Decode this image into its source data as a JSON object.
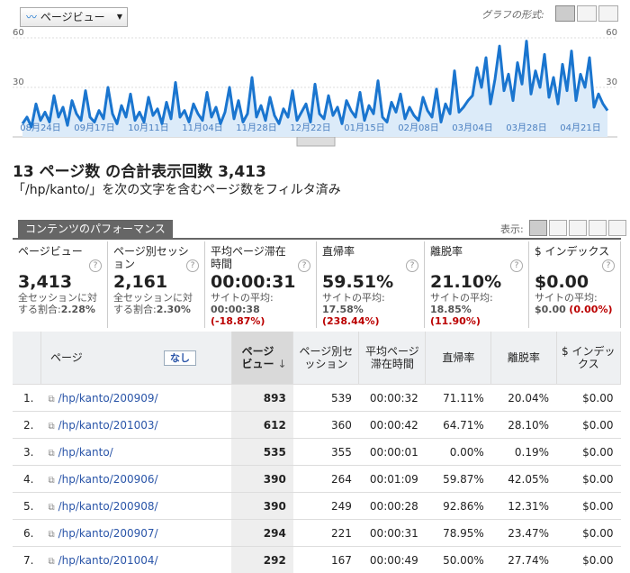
{
  "toolbar": {
    "metric": "ページビュー",
    "graph_label": "グラフの形式:"
  },
  "chart_data": {
    "type": "area",
    "color": "#1a75cf",
    "fill": "#dcebf9",
    "ylim": [
      0,
      60
    ],
    "yticks": [
      30,
      60
    ],
    "grid": true,
    "categories": [
      null,
      null,
      null,
      null,
      "08月24日",
      null,
      null,
      null,
      null,
      null,
      null,
      null,
      null,
      null,
      null,
      null,
      "09月17日",
      null,
      null,
      null,
      null,
      null,
      null,
      null,
      null,
      null,
      null,
      null,
      "10月11日",
      null,
      null,
      null,
      null,
      null,
      null,
      null,
      null,
      null,
      null,
      null,
      "11月04日",
      null,
      null,
      null,
      null,
      null,
      null,
      null,
      null,
      null,
      null,
      null,
      "11月28日",
      null,
      null,
      null,
      null,
      null,
      null,
      null,
      null,
      null,
      null,
      null,
      "12月22日",
      null,
      null,
      null,
      null,
      null,
      null,
      null,
      null,
      null,
      null,
      null,
      "01月15日",
      null,
      null,
      null,
      null,
      null,
      null,
      null,
      null,
      null,
      null,
      null,
      "02月08日",
      null,
      null,
      null,
      null,
      null,
      null,
      null,
      null,
      null,
      null,
      null,
      "03月04日",
      null,
      null,
      null,
      null,
      null,
      null,
      null,
      null,
      null,
      null,
      null,
      "03月28日",
      null,
      null,
      null,
      null,
      null,
      null,
      null,
      null,
      null,
      null,
      null,
      "04月21日",
      null,
      null,
      null,
      null,
      null,
      null
    ],
    "values": [
      8,
      12,
      6,
      20,
      10,
      15,
      9,
      25,
      12,
      18,
      7,
      22,
      14,
      10,
      28,
      12,
      9,
      16,
      11,
      30,
      14,
      8,
      19,
      12,
      26,
      10,
      15,
      9,
      24,
      13,
      17,
      8,
      21,
      11,
      33,
      12,
      16,
      9,
      20,
      14,
      10,
      27,
      12,
      18,
      8,
      15,
      30,
      11,
      22,
      9,
      14,
      36,
      12,
      19,
      10,
      24,
      13,
      8,
      17,
      12,
      28,
      10,
      15,
      20,
      9,
      32,
      14,
      11,
      25,
      13,
      18,
      8,
      22,
      16,
      12,
      27,
      10,
      19,
      14,
      34,
      12,
      9,
      21,
      15,
      26,
      11,
      18,
      13,
      10,
      24,
      16,
      12,
      29,
      9,
      20,
      14,
      40,
      15,
      18,
      22,
      25,
      42,
      30,
      48,
      20,
      35,
      55,
      28,
      38,
      22,
      45,
      32,
      58,
      26,
      40,
      30,
      50,
      24,
      36,
      20,
      44,
      28,
      52,
      22,
      38,
      30,
      48,
      18,
      26,
      20,
      16
    ]
  },
  "heading": {
    "title": "13 ページ数 の合計表示回数 3,413",
    "filter": "「/hp/kanto/」を次の文字を含むページ数をフィルタ済み"
  },
  "tab": "コンテンツのパフォーマンス",
  "view_label": "表示:",
  "summary": [
    {
      "label": "ページビュー",
      "value": "3,413",
      "sub": "全セッションに対する割合:",
      "avg": "2.28%"
    },
    {
      "label": "ページ別セッション",
      "value": "2,161",
      "sub": "全セッションに対する割合:",
      "avg": "2.30%"
    },
    {
      "label": "平均ページ滞在時間",
      "value": "00:00:31",
      "sub": "サイトの平均:",
      "avg": "00:00:38",
      "diff": "(-18.87%)"
    },
    {
      "label": "直帰率",
      "value": "59.51%",
      "sub": "サイトの平均:",
      "avg": "17.58%",
      "diff": "(238.44%)"
    },
    {
      "label": "離脱率",
      "value": "21.10%",
      "sub": "サイトの平均:",
      "avg": "18.85%",
      "diff": "(11.90%)"
    },
    {
      "label": "$ インデックス",
      "value": "$0.00",
      "sub": "サイトの平均:",
      "avg": "$0.00",
      "diff": "(0.00%)"
    }
  ],
  "table": {
    "filter_button": "なし",
    "columns": [
      "ページ",
      "ページビュー",
      "ページ別セッション",
      "平均ページ滞在時間",
      "直帰率",
      "離脱率",
      "$ インデックス"
    ],
    "rows": [
      [
        "1.",
        "/hp/kanto/200909/",
        "893",
        "539",
        "00:00:32",
        "71.11%",
        "20.04%",
        "$0.00"
      ],
      [
        "2.",
        "/hp/kanto/201003/",
        "612",
        "360",
        "00:00:42",
        "64.71%",
        "28.10%",
        "$0.00"
      ],
      [
        "3.",
        "/hp/kanto/",
        "535",
        "355",
        "00:00:01",
        "0.00%",
        "0.19%",
        "$0.00"
      ],
      [
        "4.",
        "/hp/kanto/200906/",
        "390",
        "264",
        "00:01:09",
        "59.87%",
        "42.05%",
        "$0.00"
      ],
      [
        "5.",
        "/hp/kanto/200908/",
        "390",
        "249",
        "00:00:28",
        "92.86%",
        "12.31%",
        "$0.00"
      ],
      [
        "6.",
        "/hp/kanto/200907/",
        "294",
        "221",
        "00:00:31",
        "78.95%",
        "23.47%",
        "$0.00"
      ],
      [
        "7.",
        "/hp/kanto/201004/",
        "292",
        "167",
        "00:00:49",
        "50.00%",
        "27.74%",
        "$0.00"
      ]
    ]
  }
}
